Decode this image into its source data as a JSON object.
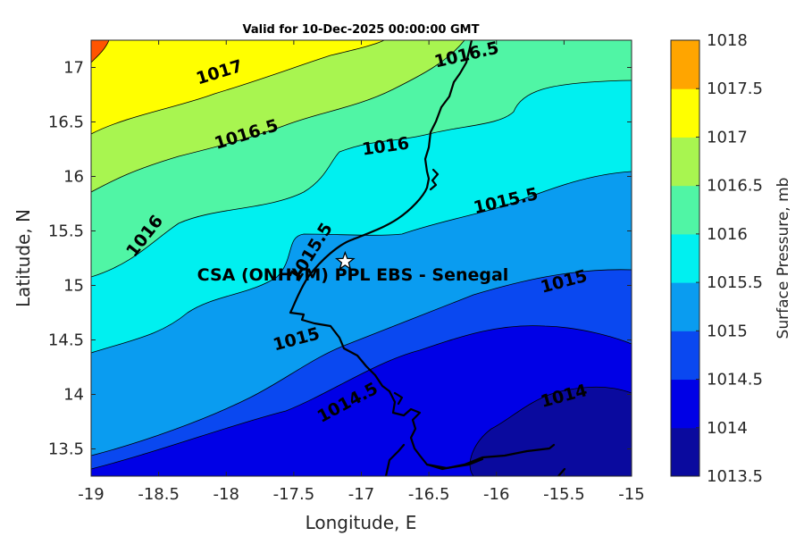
{
  "chart_data": {
    "type": "filled-contour",
    "title": "Valid for 10-Dec-2025 00:00:00 GMT",
    "xlabel": "Longitude, E",
    "ylabel": "Latitude, N",
    "xlim": [
      -19,
      -15
    ],
    "ylim": [
      13.25,
      17.25
    ],
    "x_ticks": [
      "-19",
      "-18.5",
      "-18",
      "-17.5",
      "-17",
      "-16.5",
      "-16",
      "-15.5",
      "-15"
    ],
    "y_ticks": [
      "13.5",
      "14",
      "14.5",
      "15",
      "15.5",
      "16",
      "16.5",
      "17"
    ],
    "colorbar": {
      "label": "Surface Pressure, mb",
      "levels": [
        "1013.5",
        "1014",
        "1014.5",
        "1015",
        "1015.5",
        "1016",
        "1016.5",
        "1017",
        "1017.5",
        "1018"
      ],
      "colors": [
        "#0a0a9e",
        "#0000e6",
        "#0a48f0",
        "#0a9cf0",
        "#00f0f0",
        "#50f5a5",
        "#a8f550",
        "#ffff00",
        "#ffa500",
        "#ff5500"
      ]
    },
    "contour_labels": [
      {
        "text": "1017",
        "x": -18.05,
        "y": 16.95,
        "angle": -17
      },
      {
        "text": "1016.5",
        "x": -16.22,
        "y": 17.11,
        "angle": -13
      },
      {
        "text": "1016.5",
        "x": -17.85,
        "y": 16.38,
        "angle": -17
      },
      {
        "text": "1016",
        "x": -16.82,
        "y": 16.27,
        "angle": -8
      },
      {
        "text": "1016",
        "x": -18.6,
        "y": 15.45,
        "angle": -52
      },
      {
        "text": "1015.5",
        "x": -15.93,
        "y": 15.77,
        "angle": -13
      },
      {
        "text": "1015.5",
        "x": -17.37,
        "y": 15.3,
        "angle": -58
      },
      {
        "text": "1015",
        "x": -15.5,
        "y": 15.03,
        "angle": -15
      },
      {
        "text": "1015",
        "x": -17.48,
        "y": 14.5,
        "angle": -15
      },
      {
        "text": "1014.5",
        "x": -17.1,
        "y": 13.92,
        "angle": -28
      },
      {
        "text": "1014",
        "x": -15.5,
        "y": 13.98,
        "angle": -15
      }
    ],
    "site": {
      "name": "CSA (ONHYM) PPL EBS  - Senegal",
      "lon": -17.12,
      "lat": 15.22
    }
  }
}
